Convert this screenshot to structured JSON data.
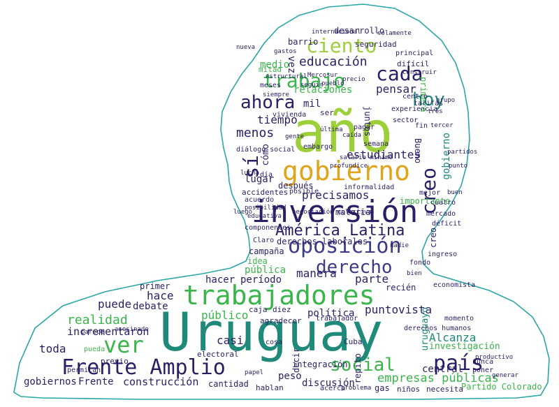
{
  "palette": {
    "outline": "#2aa6a6",
    "navy": "#2a1f66",
    "indigo": "#3b3b86",
    "teal": "#1f8a7a",
    "green": "#39b54a",
    "lime": "#9ccf3a",
    "gold": "#e0a41a",
    "blue": "#3a5aa0"
  },
  "words": {
    "w_uruguay": "Uruguay",
    "w_ano": "año",
    "w_inversion": "inversión",
    "w_trabajadores": "trabajadores",
    "w_gobierno": "gobierno",
    "w_oposicion": "oposición",
    "w_frente_amplio": "Frente Amplio",
    "w_america_latina": "América Latina",
    "w_derecho": "derecho",
    "w_ver": "ver",
    "w_ciento": "ciento",
    "w_trabajo": "trabajo",
    "w_cada": "cada",
    "w_ahora": "ahora",
    "w_hoy": "hoy",
    "w_educacion": "educación",
    "w_si": "sí",
    "w_creo": "creo",
    "w_social": "social",
    "w_pais": "país",
    "w_menos": "menos",
    "w_precisamos": "precisamos",
    "w_empresas_publicas": "empresas públicas",
    "w_tiempo": "tiempo",
    "w_estudiantes": "estudiantes",
    "w_lugar": "lugar",
    "w_despues": "después",
    "w_parte": "parte",
    "w_manera": "manera",
    "w_periodo": "período",
    "w_hacer": "hacer",
    "w_realidad": "realidad",
    "w_puede": "puede",
    "w_hace": "hace",
    "w_debate": "debate",
    "w_publico": "público",
    "w_incrementaron": "incrementaron",
    "w_toda": "toda",
    "w_casi": "casi",
    "w_peso": "peso",
    "w_construccion": "construcción",
    "w_gobiernos": "gobiernos",
    "w_frente": "Frente",
    "w_cantidad": "cantidad",
    "w_discusion": "discusión",
    "w_alcanza": "Alcanza",
    "w_investigacion": "investigación",
    "w_politica": "política",
    "w_punto": "punto",
    "w_vista": "vista",
    "w_derechos_laborales": "derechos laborales",
    "w_campana": "campaña",
    "w_publica": "pública",
    "w_relaciones": "relaciones",
    "w_pensar": "pensar",
    "w_medio": "medio",
    "w_desarrollo": "desarrollo",
    "w_materia": "materia",
    "w_importante": "importante",
    "w_vez": "vez",
    "w_experiencia": "experiencia",
    "w_vivienda": "vivienda",
    "w_dialogo_social": "diálogo social",
    "w_barrio": "barrio",
    "w_seguridad": "seguridad",
    "w_internacional": "internacional",
    "w_principal": "principal",
    "w_dificil": "difícil",
    "w_construir": "construir",
    "w_pueblo": "pueblo",
    "w_seguir": "seguir",
    "w_precio": "precio",
    "w_primera": "primera",
    "w_mitad": "mitad",
    "w_meses": "meses",
    "w_siempre": "siempre",
    "w_mil": "mil",
    "w_ser": "ser",
    "w_juntos": "juntos",
    "w_gobierno_v": "gobierno",
    "w_bueno": "Bueno",
    "w_pagar": "pagar",
    "w_sector": "sector",
    "w_embargo": "embargo",
    "w_semana": "semana",
    "w_accidentes": "accidentes",
    "w_acuerdo": "acuerdo",
    "w_posible": "posible",
    "w_informalidad": "informalidad",
    "w_cuatro": "cuatro",
    "w_negociacion": "negociación colectiva",
    "w_mercado": "mercado",
    "w_componentes": "componentes",
    "w_deficit": "déficit",
    "w_claro": "Claro",
    "w_idea": "idea",
    "w_ingreso": "ingreso",
    "w_fondo": "fondo",
    "w_primer": "primer",
    "w_recien": "recién",
    "w_economista": "economista",
    "w_diez": "diez",
    "w_caja": "caja",
    "w_agradecer": "agradecer",
    "w_trabajador": "trabajador",
    "w_cuba": "Cuba",
    "w_integracion": "integración",
    "w_repito": "repito",
    "w_central": "central",
    "w_nunca": "nunca",
    "w_poner": "poner",
    "w_partido_colorado": "Partido Colorado",
    "w_hablan": "hablan",
    "w_problema": "problema",
    "w_gas": "gas",
    "w_ninos": "niños",
    "w_necesita": "necesita",
    "w_decir": "decir",
    "w_electoral": "electoral",
    "w_previo": "previo",
    "w_permitan": "permitan",
    "w_pueda": "pueda",
    "w_parece": "parece",
    "w_asesinado": "asesinado",
    "w_derechos_humanos": "derechos humanos",
    "w_momento": "momento",
    "w_productivo": "productivo",
    "w_generar": "generar",
    "w_cosa": "cosa",
    "w_nueva": "nueva",
    "w_centro": "centro",
    "w_tres": "tres",
    "w_gente": "gente",
    "w_fin": "fin",
    "w_caida": "caída",
    "w_ultima": "última",
    "w_luego": "luego",
    "w_papel": "papel",
    "w_dia": "día",
    "w_solamente": "solamente",
    "w_gastos": "gastos",
    "w_como": "cómo",
    "w_creo_v": "creo",
    "w_uruguayo": "uruguayo",
    "w_tarifas": "tarifas",
    "w_salario_minimo": "salario mínimo",
    "w_profundice": "profundice",
    "w_mejor": "mejor",
    "w_posibilidad": "posibilidad",
    "w_educativa": "educativa",
    "w_tercer": "tercer",
    "w_acerca": "acerca",
    "w_estructural": "estructural",
    "w_mercosur": "Mercosur",
    "w_lucha": "lucha",
    "w_nadie": "nadie",
    "w_buen": "buen",
    "w_grupo": "grupo",
    "w_punto2": "punto",
    "w_partidos": "partidos",
    "w_bien": "bien"
  }
}
